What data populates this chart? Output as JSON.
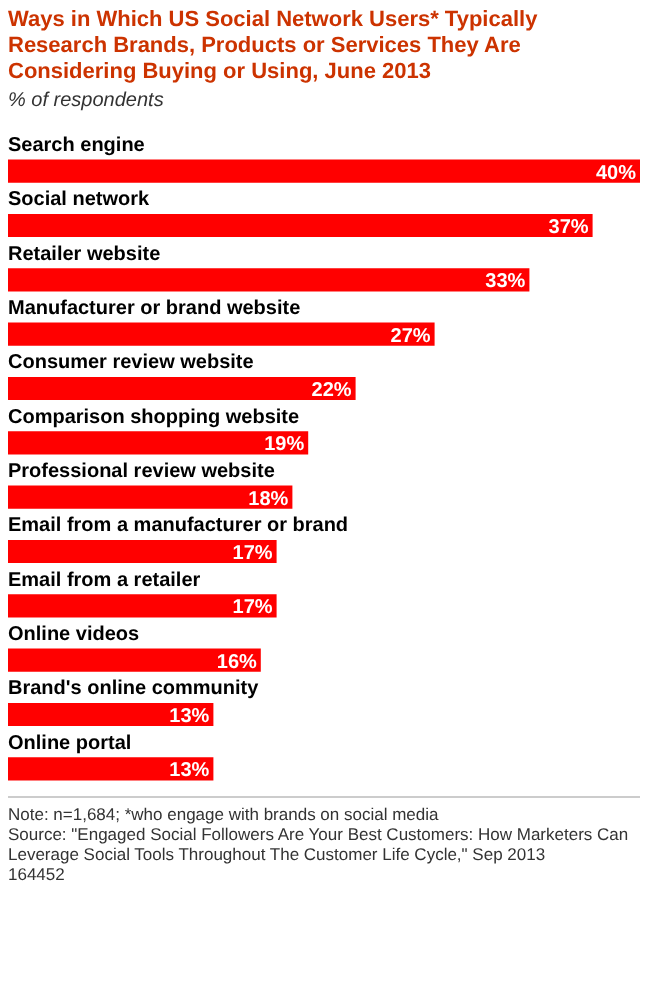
{
  "chart_data": {
    "type": "bar",
    "orientation": "horizontal",
    "title": "Ways in Which US Social Network Users* Typically Research Brands, Products or Services They Are Considering Buying or Using, June 2013",
    "subtitle": "% of respondents",
    "categories": [
      "Search engine",
      "Social network",
      "Retailer website",
      "Manufacturer or brand website",
      "Consumer review website",
      "Comparison shopping website",
      "Professional review website",
      "Email from a manufacturer or brand",
      "Email from a retailer",
      "Online videos",
      "Brand's online community",
      "Online portal"
    ],
    "values": [
      40,
      37,
      33,
      27,
      22,
      19,
      18,
      17,
      17,
      16,
      13,
      13
    ],
    "value_labels": [
      "40%",
      "37%",
      "33%",
      "27%",
      "22%",
      "19%",
      "18%",
      "17%",
      "17%",
      "16%",
      "13%",
      "13%"
    ],
    "color": "#ff0000",
    "legend": false,
    "annotations": [
      "Note: n=1,684; *who engage with brands on social media",
      "Source: \"Engaged Social Followers Are Your Best Customers: How Marketers Can Leverage Social Tools Throughout The Customer Life Cycle,\" Sep 2013",
      "164452"
    ]
  }
}
